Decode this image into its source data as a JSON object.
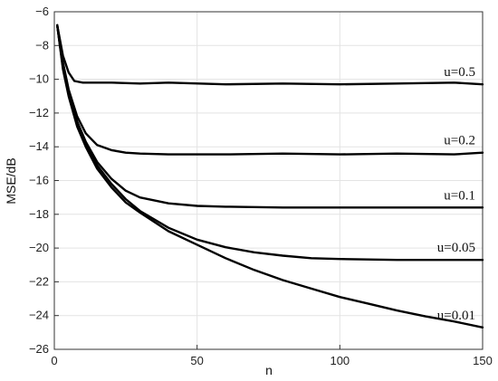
{
  "chart_data": {
    "type": "line",
    "xlabel": "n",
    "ylabel": "MSE/dB",
    "xlim": [
      0,
      150
    ],
    "ylim": [
      -26,
      -6
    ],
    "xticks": [
      0,
      50,
      100,
      150
    ],
    "yticks": [
      -26,
      -24,
      -22,
      -20,
      -18,
      -16,
      -14,
      -12,
      -10,
      -8,
      -6
    ],
    "grid": true,
    "series": [
      {
        "name": "u=0.5",
        "x": [
          1,
          3,
          5,
          7,
          10,
          15,
          20,
          30,
          40,
          60,
          80,
          100,
          120,
          140,
          150
        ],
        "y": [
          -6.8,
          -8.6,
          -9.6,
          -10.1,
          -10.2,
          -10.2,
          -10.2,
          -10.25,
          -10.2,
          -10.3,
          -10.25,
          -10.3,
          -10.25,
          -10.2,
          -10.3
        ]
      },
      {
        "name": "u=0.2",
        "x": [
          1,
          3,
          5,
          8,
          11,
          15,
          20,
          25,
          30,
          40,
          60,
          80,
          100,
          120,
          140,
          150
        ],
        "y": [
          -6.8,
          -9.0,
          -10.6,
          -12.2,
          -13.2,
          -13.9,
          -14.2,
          -14.35,
          -14.4,
          -14.45,
          -14.45,
          -14.4,
          -14.45,
          -14.4,
          -14.45,
          -14.35
        ]
      },
      {
        "name": "u=0.1",
        "x": [
          1,
          3,
          5,
          8,
          11,
          15,
          20,
          25,
          30,
          40,
          50,
          60,
          80,
          100,
          120,
          140,
          150
        ],
        "y": [
          -6.8,
          -9.2,
          -10.8,
          -12.5,
          -13.7,
          -14.9,
          -15.9,
          -16.6,
          -17.0,
          -17.35,
          -17.5,
          -17.55,
          -17.6,
          -17.6,
          -17.6,
          -17.6,
          -17.6
        ]
      },
      {
        "name": "u=0.05",
        "x": [
          1,
          3,
          5,
          8,
          11,
          15,
          20,
          25,
          30,
          40,
          50,
          60,
          70,
          80,
          90,
          100,
          120,
          140,
          150
        ],
        "y": [
          -6.8,
          -9.3,
          -10.9,
          -12.7,
          -13.9,
          -15.1,
          -16.2,
          -17.1,
          -17.8,
          -18.8,
          -19.5,
          -19.95,
          -20.25,
          -20.45,
          -20.6,
          -20.65,
          -20.7,
          -20.7,
          -20.7
        ]
      },
      {
        "name": "u=0.01",
        "x": [
          1,
          3,
          5,
          8,
          11,
          15,
          20,
          25,
          30,
          40,
          50,
          60,
          70,
          80,
          90,
          100,
          110,
          120,
          130,
          140,
          150
        ],
        "y": [
          -6.8,
          -9.4,
          -11.0,
          -12.8,
          -14.0,
          -15.3,
          -16.4,
          -17.3,
          -17.9,
          -19.0,
          -19.8,
          -20.6,
          -21.3,
          -21.9,
          -22.4,
          -22.9,
          -23.3,
          -23.7,
          -24.05,
          -24.35,
          -24.7
        ]
      }
    ]
  }
}
